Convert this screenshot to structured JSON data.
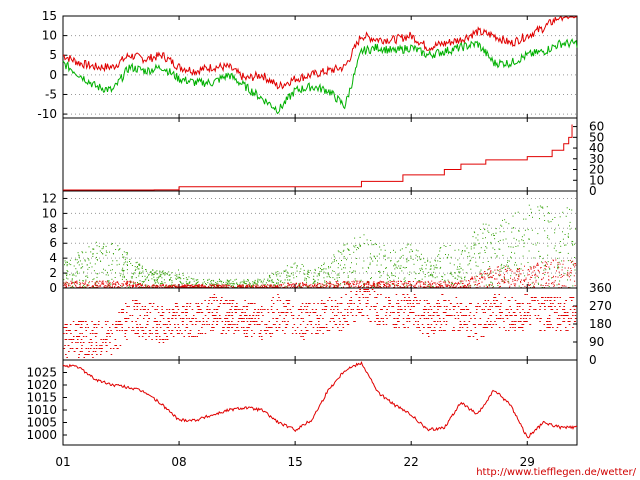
{
  "chart_data": [
    {
      "type": "line",
      "panel": "temperature",
      "ylim": [
        -11,
        15
      ],
      "yticks": [
        -10,
        -5,
        0,
        5,
        10,
        15
      ],
      "grid": true,
      "x": [
        1,
        2,
        3,
        4,
        5,
        6,
        7,
        8,
        9,
        10,
        11,
        12,
        13,
        14,
        15,
        16,
        17,
        18,
        19,
        20,
        21,
        22,
        23,
        24,
        25,
        26,
        27,
        28,
        29,
        30,
        31
      ],
      "series": [
        {
          "color": "#e00000",
          "values": [
            5,
            3,
            2,
            2,
            5,
            4,
            5,
            2,
            1,
            2,
            2,
            -1,
            0,
            -3,
            -1,
            0,
            1,
            2,
            10,
            9,
            9,
            10,
            7,
            8,
            9,
            11,
            10,
            8,
            10,
            12,
            15
          ]
        },
        {
          "color": "#00b000",
          "values": [
            3,
            0,
            -3,
            -4,
            2,
            1,
            2,
            -1,
            -2,
            -2,
            0,
            -3,
            -6,
            -9,
            -4,
            -3,
            -4,
            -8,
            6,
            7,
            6,
            7,
            5,
            6,
            7,
            8,
            3,
            3,
            5,
            6,
            8
          ]
        }
      ]
    },
    {
      "type": "line",
      "panel": "cumulative",
      "ylim": [
        0,
        68
      ],
      "yticks": [
        0,
        10,
        20,
        30,
        40,
        50,
        60
      ],
      "grid": false,
      "series": [
        {
          "color": "#e00000",
          "x": [
            1,
            5,
            6.5,
            8,
            19,
            21.5,
            24,
            25,
            26.5,
            29,
            30.5,
            31.2,
            31.5,
            31.7
          ],
          "values": [
            0,
            0,
            1,
            4,
            9,
            15,
            20,
            25,
            29,
            32,
            38,
            44,
            50,
            62
          ]
        }
      ]
    },
    {
      "type": "scatter",
      "panel": "wind",
      "ylim": [
        0,
        13
      ],
      "yticks": [
        0,
        2,
        4,
        6,
        8,
        10,
        12
      ],
      "grid": true,
      "x": [
        1,
        2,
        3,
        4,
        5,
        6,
        7,
        8,
        9,
        10,
        11,
        12,
        13,
        14,
        15,
        16,
        17,
        18,
        19,
        20,
        21,
        22,
        23,
        24,
        25,
        26,
        27,
        28,
        29,
        30,
        31
      ],
      "series": [
        {
          "color": "#2f9e00",
          "values": [
            3,
            4,
            5,
            5,
            4,
            2,
            2,
            2,
            1,
            1,
            1,
            1,
            1,
            2,
            3,
            2,
            3,
            5,
            6,
            5,
            4,
            5,
            3,
            5,
            4,
            7,
            7,
            8,
            9,
            9,
            9
          ]
        },
        {
          "color": "#e00000",
          "values": [
            1,
            1,
            1,
            1,
            1,
            0.5,
            0.5,
            0.5,
            0.5,
            0.5,
            0.5,
            0.5,
            0.5,
            0.5,
            1,
            0.5,
            1,
            1,
            1,
            1,
            1,
            1,
            1,
            1,
            1,
            2,
            3,
            3,
            3,
            4,
            4
          ]
        }
      ]
    },
    {
      "type": "scatter",
      "panel": "wind_direction",
      "ylim": [
        0,
        360
      ],
      "yticks": [
        0,
        90,
        180,
        270,
        360
      ],
      "grid": false,
      "series": [
        {
          "color": "#e00000",
          "x": [
            1,
            2,
            3,
            4,
            5,
            6,
            7,
            8,
            9,
            10,
            11,
            12,
            13,
            14,
            15,
            16,
            17,
            18,
            19,
            20,
            21,
            22,
            23,
            24,
            25,
            26,
            27,
            28,
            29,
            30,
            31
          ],
          "values": [
            100,
            110,
            100,
            120,
            220,
            200,
            180,
            200,
            200,
            240,
            220,
            210,
            190,
            240,
            200,
            200,
            230,
            250,
            300,
            260,
            240,
            250,
            210,
            240,
            220,
            190,
            250,
            230,
            240,
            230,
            240
          ]
        }
      ]
    },
    {
      "type": "line",
      "panel": "pressure",
      "ylim": [
        996,
        1030
      ],
      "yticks": [
        1000,
        1005,
        1010,
        1015,
        1020,
        1025
      ],
      "grid": false,
      "x": [
        1,
        2,
        3,
        4,
        5,
        6,
        7,
        8,
        9,
        10,
        11,
        12,
        13,
        14,
        15,
        16,
        17,
        18,
        19,
        20,
        21,
        22,
        23,
        24,
        25,
        26,
        27,
        28,
        29,
        30,
        31
      ],
      "series": [
        {
          "color": "#e00000",
          "values": [
            1028,
            1027,
            1022,
            1020,
            1019,
            1017,
            1012,
            1006,
            1006,
            1008,
            1010,
            1011,
            1010,
            1005,
            1002,
            1006,
            1018,
            1026,
            1029,
            1017,
            1012,
            1008,
            1002,
            1003,
            1013,
            1008,
            1018,
            1012,
            999,
            1005,
            1003
          ]
        }
      ]
    }
  ],
  "xaxis": {
    "ticks": [
      1,
      8,
      15,
      22,
      29
    ],
    "labels": [
      "01",
      "08",
      "15",
      "22",
      "29"
    ],
    "range": [
      1,
      32
    ]
  },
  "credit": "http://www.tiefflegen.de/wetter/"
}
